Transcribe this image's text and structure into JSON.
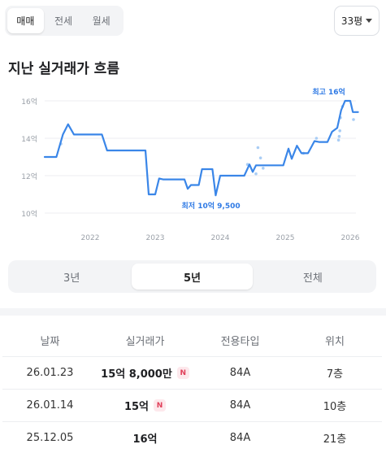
{
  "tabs": [
    {
      "label": "매매",
      "active": true
    },
    {
      "label": "전세",
      "active": false
    },
    {
      "label": "월세",
      "active": false
    }
  ],
  "size_select": {
    "value": "33평"
  },
  "section_title": "지난 실거래가 흐름",
  "chart_data": {
    "type": "line",
    "title": "",
    "xlabel": "",
    "ylabel": "",
    "y_unit": "억",
    "ylim": [
      10,
      16
    ],
    "yticks": [
      10,
      12,
      14,
      16
    ],
    "ytick_labels": [
      "10억",
      "12억",
      "14억",
      "16억"
    ],
    "xlim": [
      2021.3,
      2026.15
    ],
    "xticks": [
      2022,
      2023,
      2024,
      2025,
      2026
    ],
    "xtick_labels": [
      "2022",
      "2023",
      "2024",
      "2025",
      "2026"
    ],
    "grid": true,
    "line_color": "#3a86e8",
    "annotations": [
      {
        "text": "최고 16억",
        "x": 2025.92,
        "y": 16.0
      },
      {
        "text": "최저 10억 9,500",
        "x": 2023.92,
        "y": 10.95
      }
    ],
    "series": [
      {
        "kind": "line",
        "points": [
          [
            2021.3,
            13.0
          ],
          [
            2021.48,
            13.0
          ],
          [
            2021.58,
            14.2
          ],
          [
            2021.66,
            14.75
          ],
          [
            2021.75,
            14.2
          ],
          [
            2022.08,
            14.2
          ],
          [
            2022.18,
            14.2
          ],
          [
            2022.26,
            13.35
          ],
          [
            2022.55,
            13.35
          ],
          [
            2022.85,
            13.35
          ],
          [
            2022.9,
            11.0
          ],
          [
            2023.0,
            11.0
          ],
          [
            2023.06,
            11.85
          ],
          [
            2023.12,
            11.8
          ],
          [
            2023.45,
            11.8
          ],
          [
            2023.5,
            11.3
          ],
          [
            2023.55,
            11.5
          ],
          [
            2023.67,
            11.5
          ],
          [
            2023.72,
            12.35
          ],
          [
            2023.88,
            12.35
          ],
          [
            2023.93,
            10.95
          ],
          [
            2024.0,
            12.0
          ],
          [
            2024.37,
            12.0
          ],
          [
            2024.45,
            12.6
          ],
          [
            2024.5,
            12.2
          ],
          [
            2024.55,
            12.55
          ],
          [
            2024.97,
            12.55
          ],
          [
            2025.05,
            13.45
          ],
          [
            2025.1,
            12.9
          ],
          [
            2025.18,
            13.6
          ],
          [
            2025.25,
            13.2
          ],
          [
            2025.35,
            13.2
          ],
          [
            2025.45,
            13.85
          ],
          [
            2025.52,
            13.8
          ],
          [
            2025.65,
            13.8
          ],
          [
            2025.72,
            14.35
          ],
          [
            2025.8,
            14.55
          ],
          [
            2025.86,
            15.5
          ],
          [
            2025.92,
            16.0
          ],
          [
            2026.0,
            16.0
          ],
          [
            2026.04,
            15.4
          ],
          [
            2026.12,
            15.4
          ]
        ]
      },
      {
        "kind": "scatter",
        "points": [
          [
            2021.55,
            13.7
          ],
          [
            2024.42,
            12.6
          ],
          [
            2024.55,
            12.1
          ],
          [
            2024.58,
            13.5
          ],
          [
            2024.62,
            12.95
          ],
          [
            2024.66,
            12.4
          ],
          [
            2025.28,
            13.2
          ],
          [
            2025.48,
            14.0
          ],
          [
            2025.82,
            13.9
          ],
          [
            2025.83,
            14.1
          ],
          [
            2025.84,
            14.4
          ],
          [
            2025.85,
            15.1
          ],
          [
            2025.88,
            15.7
          ],
          [
            2026.05,
            15.0
          ]
        ]
      }
    ]
  },
  "periods": [
    {
      "label": "3년",
      "active": false
    },
    {
      "label": "5년",
      "active": true
    },
    {
      "label": "전체",
      "active": false
    }
  ],
  "table": {
    "headers": [
      "날짜",
      "실거래가",
      "전용타입",
      "위치"
    ],
    "rows": [
      {
        "date": "26.01.23",
        "price": "15억 8,000만",
        "badge": "N",
        "type": "84A",
        "floor": "7층"
      },
      {
        "date": "26.01.14",
        "price": "15억",
        "badge": "N",
        "type": "84A",
        "floor": "10층"
      },
      {
        "date": "25.12.05",
        "price": "16억",
        "badge": "",
        "type": "84A",
        "floor": "21층"
      }
    ]
  }
}
